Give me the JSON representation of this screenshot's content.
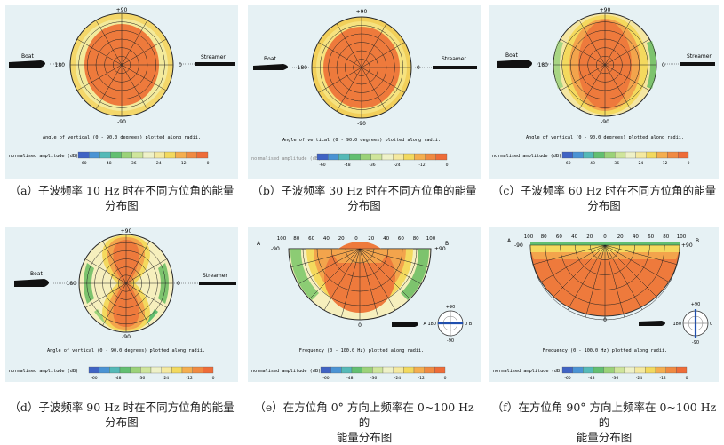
{
  "panels": [
    {
      "id": "a",
      "caption_line1": "（a）子波频率 10 Hz 时在不同方位角的能量",
      "caption_line2": "分布图",
      "labels": {
        "top": "+90",
        "bottom": "-90",
        "left": "180",
        "right": "0",
        "boat": "Boat",
        "streamer": "Streamer"
      },
      "axis_note": "Angle of vertical (0 - 90.0 degrees) plotted along radii.",
      "colorbar_label": "normalised amplitude (dB)",
      "colorbar_ticks": [
        "-60",
        "-48",
        "-36",
        "-24",
        "-12",
        "0"
      ]
    },
    {
      "id": "b",
      "caption_line1": "（b）子波频率 30 Hz 时在不同方位角的能量",
      "caption_line2": "分布图",
      "labels": {
        "top": "+90",
        "bottom": "-90",
        "left": "180",
        "right": "0",
        "boat": "Boat",
        "streamer": "Streamer"
      },
      "axis_note": "Angle of vertical (0 - 90.0 degrees) plotted along radii.",
      "colorbar_label": "normalised amplitude (dB)",
      "colorbar_ticks": [
        "-60",
        "-48",
        "-36",
        "-24",
        "-12",
        "0"
      ]
    },
    {
      "id": "c",
      "caption_line1": "（c）子波频率 60 Hz 时在不同方位角的能量",
      "caption_line2": "分布图",
      "labels": {
        "top": "+90",
        "bottom": "-90",
        "left": "180",
        "right": "0",
        "boat": "Boat",
        "streamer": "Streamer"
      },
      "axis_note": "Angle of vertical (0 - 90.0 degrees) plotted along radii.",
      "colorbar_label": "normalised amplitude (dB)",
      "colorbar_ticks": [
        "-60",
        "-48",
        "-36",
        "-24",
        "-12",
        "0"
      ]
    },
    {
      "id": "d",
      "caption_line1": "（d）子波频率 90 Hz 时在不同方位角的能量",
      "caption_line2": "分布图",
      "labels": {
        "top": "+90",
        "bottom": "-90",
        "left": "180",
        "right": "0",
        "boat": "Boat",
        "streamer": "Streamer"
      },
      "axis_note": "Angle of vertical (0 - 90.0 degrees) plotted along radii.",
      "colorbar_label": "normalised amplitude (dB)",
      "colorbar_ticks": [
        "-60",
        "-48",
        "-36",
        "-24",
        "-12",
        "0"
      ]
    },
    {
      "id": "e",
      "caption_line1": "（e）在方位角 0° 方向上频率在 0~100 Hz 的",
      "caption_line2": "能量分布图",
      "labels": {
        "corner_left": "A",
        "corner_right": "B",
        "end_left": "-90",
        "end_right": "+90",
        "bottom": "0",
        "top_ticks": [
          "100",
          "80",
          "60",
          "40",
          "20",
          "0",
          "20",
          "40",
          "60",
          "80",
          "100"
        ],
        "inset_top": "+90",
        "inset_bottom": "-90",
        "inset_left": "A 180",
        "inset_right": "0 B"
      },
      "axis_note": "Frequency (0 - 100.0 Hz) plotted along radii.",
      "colorbar_label": "normalised amplitude (dB)",
      "colorbar_ticks": [
        "-60",
        "-48",
        "-36",
        "-24",
        "-12",
        "0"
      ]
    },
    {
      "id": "f",
      "caption_line1": "（f）在方位角 90° 方向上频率在 0~100 Hz 的",
      "caption_line2": "能量分布图",
      "labels": {
        "corner_left": "A",
        "corner_right": "B",
        "end_left": "-90",
        "end_right": "+90",
        "bottom": "0",
        "top_ticks": [
          "100",
          "80",
          "60",
          "40",
          "20",
          "0",
          "20",
          "40",
          "60",
          "80",
          "100"
        ],
        "inset_top": "+90",
        "inset_bottom": "-90",
        "inset_left": "180",
        "inset_right": "0"
      },
      "axis_note": "Frequency (0 - 100.0 Hz) plotted along radii.",
      "colorbar_label": "normalised amplitude (dB)",
      "colorbar_ticks": [
        "-60",
        "-48",
        "-36",
        "-24",
        "-12",
        "0"
      ]
    }
  ],
  "colors": {
    "colorbar": [
      "#3f63c4",
      "#4a93d4",
      "#54b9b7",
      "#62bf71",
      "#9bd279",
      "#cfe59c",
      "#eef1c8",
      "#f4e9a0",
      "#f2d95f",
      "#f4ae4f",
      "#f08a42",
      "#ee6c38"
    ],
    "core": "#ee7a3c",
    "ring_orange": "#f3a24c",
    "ring_yellow": "#f5e17a",
    "ring_pale": "#f7f0b8",
    "green": "#7dc36d",
    "background": "#e6f1f4"
  }
}
